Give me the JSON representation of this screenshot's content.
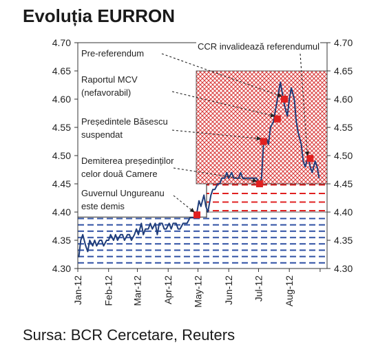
{
  "title": "Evoluția EURRON",
  "source": "Sursa: BCR Cercetare, Reuters",
  "chart_data": {
    "type": "line",
    "title": "Evoluția EURRON",
    "xlabel": "",
    "ylabel": "",
    "ylim": [
      4.3,
      4.7
    ],
    "y_ticks": [
      "4.30",
      "4.35",
      "4.40",
      "4.45",
      "4.50",
      "4.55",
      "4.60",
      "4.65",
      "4.70"
    ],
    "x_ticks": [
      "Jan-12",
      "Feb-12",
      "Mar-12",
      "Apr-12",
      "May-12",
      "Jun-12",
      "Jul-12",
      "Aug-12"
    ],
    "series": [
      {
        "color": "#1f3d7a",
        "x": [
          "2012-01-02",
          "2012-01-04",
          "2012-01-06",
          "2012-01-09",
          "2012-01-11",
          "2012-01-13",
          "2012-01-16",
          "2012-01-18",
          "2012-01-20",
          "2012-01-23",
          "2012-01-25",
          "2012-01-27",
          "2012-01-30",
          "2012-02-01",
          "2012-02-03",
          "2012-02-06",
          "2012-02-08",
          "2012-02-10",
          "2012-02-13",
          "2012-02-15",
          "2012-02-17",
          "2012-02-20",
          "2012-02-22",
          "2012-02-24",
          "2012-02-27",
          "2012-02-29",
          "2012-03-02",
          "2012-03-05",
          "2012-03-07",
          "2012-03-09",
          "2012-03-12",
          "2012-03-14",
          "2012-03-16",
          "2012-03-19",
          "2012-03-21",
          "2012-03-23",
          "2012-03-26",
          "2012-03-28",
          "2012-03-30",
          "2012-04-02",
          "2012-04-04",
          "2012-04-06",
          "2012-04-09",
          "2012-04-11",
          "2012-04-13",
          "2012-04-16",
          "2012-04-18",
          "2012-04-20",
          "2012-04-23",
          "2012-04-25",
          "2012-04-27",
          "2012-04-30",
          "2012-05-02",
          "2012-05-04",
          "2012-05-07",
          "2012-05-09",
          "2012-05-11",
          "2012-05-14",
          "2012-05-16",
          "2012-05-18",
          "2012-05-21",
          "2012-05-23",
          "2012-05-25",
          "2012-05-28",
          "2012-05-30",
          "2012-06-01",
          "2012-06-04",
          "2012-06-06",
          "2012-06-08",
          "2012-06-11",
          "2012-06-13",
          "2012-06-15",
          "2012-06-18",
          "2012-06-20",
          "2012-06-22",
          "2012-06-25",
          "2012-06-27",
          "2012-06-29",
          "2012-07-02",
          "2012-07-04",
          "2012-07-06",
          "2012-07-09",
          "2012-07-11",
          "2012-07-13",
          "2012-07-16",
          "2012-07-18",
          "2012-07-20",
          "2012-07-23",
          "2012-07-25",
          "2012-07-27",
          "2012-07-30",
          "2012-08-01",
          "2012-08-03",
          "2012-08-06",
          "2012-08-08",
          "2012-08-10",
          "2012-08-13",
          "2012-08-15",
          "2012-08-17",
          "2012-08-20",
          "2012-08-22",
          "2012-08-24",
          "2012-08-27",
          "2012-08-29",
          "2012-08-31"
        ],
        "values": [
          4.32,
          4.35,
          4.36,
          4.34,
          4.33,
          4.35,
          4.34,
          4.35,
          4.34,
          4.35,
          4.35,
          4.34,
          4.35,
          4.35,
          4.36,
          4.35,
          4.36,
          4.35,
          4.36,
          4.36,
          4.35,
          4.36,
          4.36,
          4.35,
          4.36,
          4.37,
          4.36,
          4.38,
          4.36,
          4.37,
          4.37,
          4.38,
          4.37,
          4.38,
          4.36,
          4.38,
          4.38,
          4.37,
          4.37,
          4.38,
          4.37,
          4.38,
          4.38,
          4.37,
          4.37,
          4.38,
          4.38,
          4.38,
          4.39,
          4.39,
          4.39,
          4.4,
          4.42,
          4.41,
          4.43,
          4.41,
          4.4,
          4.43,
          4.44,
          4.44,
          4.45,
          4.45,
          4.46,
          4.46,
          4.47,
          4.46,
          4.47,
          4.46,
          4.46,
          4.46,
          4.47,
          4.46,
          4.46,
          4.46,
          4.46,
          4.46,
          4.46,
          4.46,
          4.45,
          4.46,
          4.52,
          4.53,
          4.52,
          4.55,
          4.56,
          4.58,
          4.6,
          4.63,
          4.61,
          4.59,
          4.57,
          4.6,
          4.62,
          4.6,
          4.56,
          4.54,
          4.52,
          4.49,
          4.48,
          4.5,
          4.48,
          4.47,
          4.49,
          4.48,
          4.46
        ]
      }
    ],
    "markers": [
      {
        "x": "2012-04-30",
        "y": 4.395
      },
      {
        "x": "2012-07-02",
        "y": 4.45
      },
      {
        "x": "2012-07-06",
        "y": 4.525
      },
      {
        "x": "2012-07-20",
        "y": 4.565
      },
      {
        "x": "2012-07-27",
        "y": 4.6
      },
      {
        "x": "2012-08-22",
        "y": 4.495
      }
    ],
    "bands": [
      {
        "from": 4.3,
        "to": 4.39,
        "pattern": "blue-dashed"
      },
      {
        "from": 4.4,
        "to": 4.45,
        "pattern": "red-dashed"
      },
      {
        "from": 4.45,
        "to": 4.65,
        "pattern": "red-crosshatch"
      }
    ],
    "annotations": [
      {
        "label": "Pre-referendum",
        "lines": [
          "Pre-referendum"
        ]
      },
      {
        "label": "Raportul MCV (nefavorabil)",
        "lines": [
          "Raportul MCV",
          "(nefavorabil)"
        ]
      },
      {
        "label": "Președintele Băsescu suspendat",
        "lines": [
          "Președintele Băsescu",
          "suspendat"
        ]
      },
      {
        "label": "Demiterea președinților celor două Camere",
        "lines": [
          "Demiterea președinților",
          "celor două Camere"
        ]
      },
      {
        "label": "Guvernul Ungureanu este demis",
        "lines": [
          "Guvernul Ungureanu",
          "este demis"
        ]
      },
      {
        "label": "CCR invalidează referendumul",
        "lines": [
          "CCR invalidează referendumul"
        ]
      }
    ]
  }
}
